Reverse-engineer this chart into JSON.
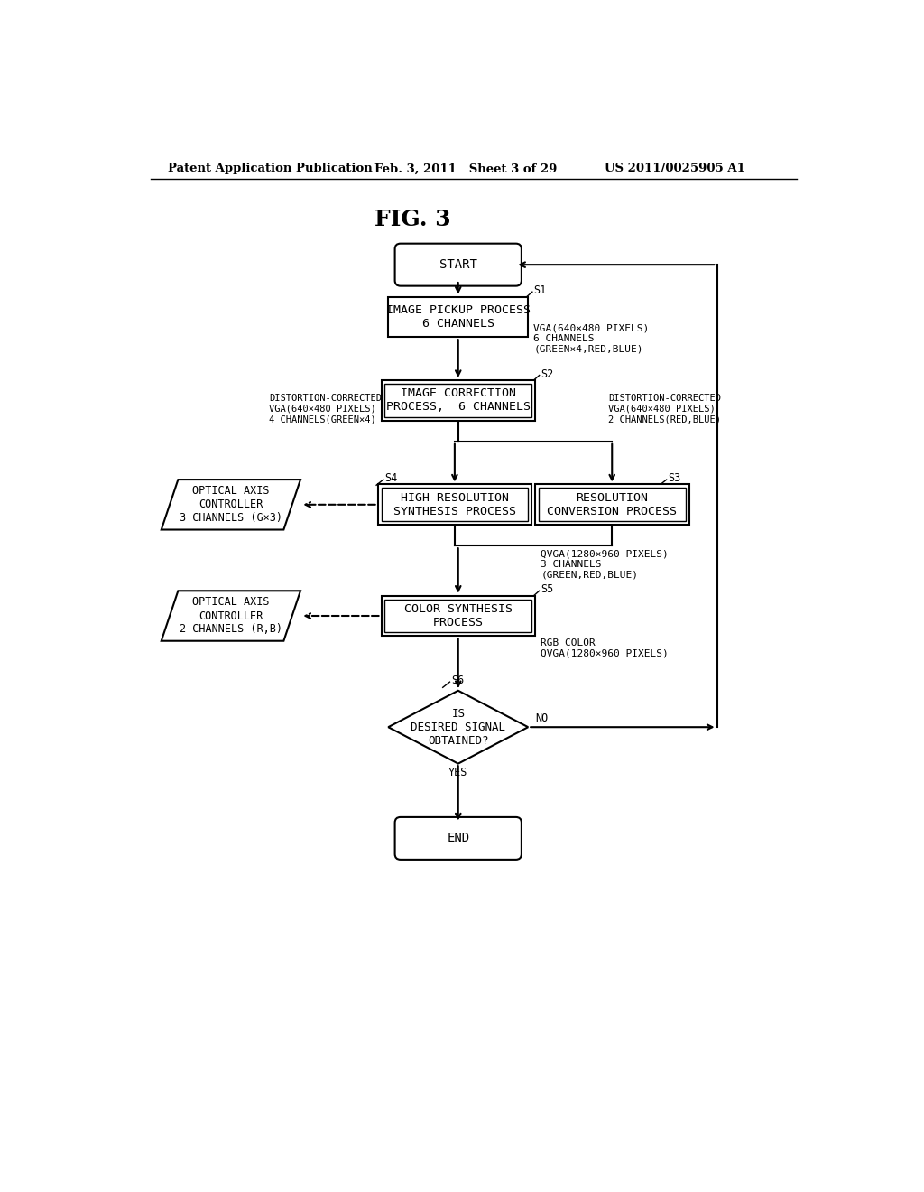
{
  "bg_color": "#ffffff",
  "header_left": "Patent Application Publication",
  "header_mid": "Feb. 3, 2011   Sheet 3 of 29",
  "header_right": "US 2011/0025905 A1",
  "fig_label": "FIG. 3",
  "start_label": "START",
  "end_label": "END",
  "s1_label": "IMAGE PICKUP PROCESS\n6 CHANNELS",
  "s2_label": "IMAGE CORRECTION\nPROCESS,  6 CHANNELS",
  "s3_label": "RESOLUTION\nCONVERSION PROCESS",
  "s4_label": "HIGH RESOLUTION\nSYNTHESIS PROCESS",
  "s5_label": "COLOR SYNTHESIS\nPROCESS",
  "s6_label": "IS\nDESIRED SIGNAL\nOBTAINED?",
  "oac1_label": "OPTICAL AXIS\nCONTROLLER\n3 CHANNELS (G×3)",
  "oac2_label": "OPTICAL AXIS\nCONTROLLER\n2 CHANNELS (R,B)",
  "vga1_text": "VGA(640×480 PIXELS)\n6 CHANNELS\n(GREEN×4,RED,BLUE)",
  "dist_left_text": "DISTORTION-CORRECTED\nVGA(640×480 PIXELS)\n4 CHANNELS(GREEN×4)",
  "dist_right_text": "DISTORTION-CORRECTED\nVGA(640×480 PIXELS)\n2 CHANNELS(RED,BLUE)",
  "qvga_text": "QVGA(1280×960 PIXELS)\n3 CHANNELS\n(GREEN,RED,BLUE)",
  "rgb_text": "RGB COLOR\nQVGA(1280×960 PIXELS)",
  "step_labels": [
    "S1",
    "S2",
    "S3",
    "S4",
    "S5",
    "S6"
  ],
  "yes_text": "YES",
  "no_text": "NO"
}
